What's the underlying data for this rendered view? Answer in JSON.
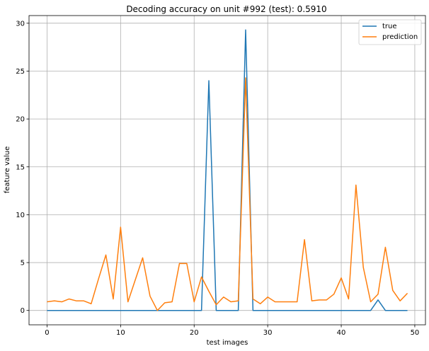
{
  "chart_data": {
    "type": "line",
    "title": "Decoding accuracy on unit #992 (test): 0.5910",
    "xlabel": "test images",
    "ylabel": "feature value",
    "xlim": [
      -2.45,
      51.45
    ],
    "ylim": [
      -1.5,
      30.8
    ],
    "xticks": [
      0,
      10,
      20,
      30,
      40,
      50
    ],
    "yticks": [
      0,
      5,
      10,
      15,
      20,
      25,
      30
    ],
    "grid": true,
    "legend_position": "top-right",
    "x": [
      0,
      1,
      2,
      3,
      4,
      5,
      6,
      7,
      8,
      9,
      10,
      11,
      12,
      13,
      14,
      15,
      16,
      17,
      18,
      19,
      20,
      21,
      22,
      23,
      24,
      25,
      26,
      27,
      28,
      29,
      30,
      31,
      32,
      33,
      34,
      35,
      36,
      37,
      38,
      39,
      40,
      41,
      42,
      43,
      44,
      45,
      46,
      47,
      48,
      49
    ],
    "series": [
      {
        "name": "true",
        "color": "#1f77b4",
        "values": [
          0,
          0,
          0,
          0,
          0,
          0,
          0,
          0,
          0,
          0,
          0,
          0,
          0,
          0,
          0,
          0,
          0,
          0,
          0,
          0,
          0,
          0,
          24.0,
          0,
          0,
          0,
          0,
          29.3,
          0,
          0,
          0,
          0,
          0,
          0,
          0,
          0,
          0,
          0,
          0,
          0,
          0,
          0,
          0,
          0,
          0,
          1.1,
          0,
          0,
          0,
          0
        ]
      },
      {
        "name": "prediction",
        "color": "#ff7f0e",
        "values": [
          0.9,
          1.0,
          0.9,
          1.2,
          1.0,
          1.0,
          0.7,
          3.3,
          5.8,
          1.2,
          8.7,
          0.9,
          3.2,
          5.5,
          1.5,
          0.0,
          0.8,
          0.9,
          4.9,
          4.9,
          0.9,
          3.5,
          2.0,
          0.6,
          1.4,
          0.9,
          1.0,
          24.3,
          1.2,
          0.7,
          1.4,
          0.9,
          0.9,
          0.9,
          0.9,
          7.4,
          1.0,
          1.1,
          1.1,
          1.7,
          3.4,
          1.2,
          13.1,
          4.5,
          0.9,
          1.7,
          6.6,
          2.1,
          1.0,
          1.8
        ]
      }
    ]
  }
}
